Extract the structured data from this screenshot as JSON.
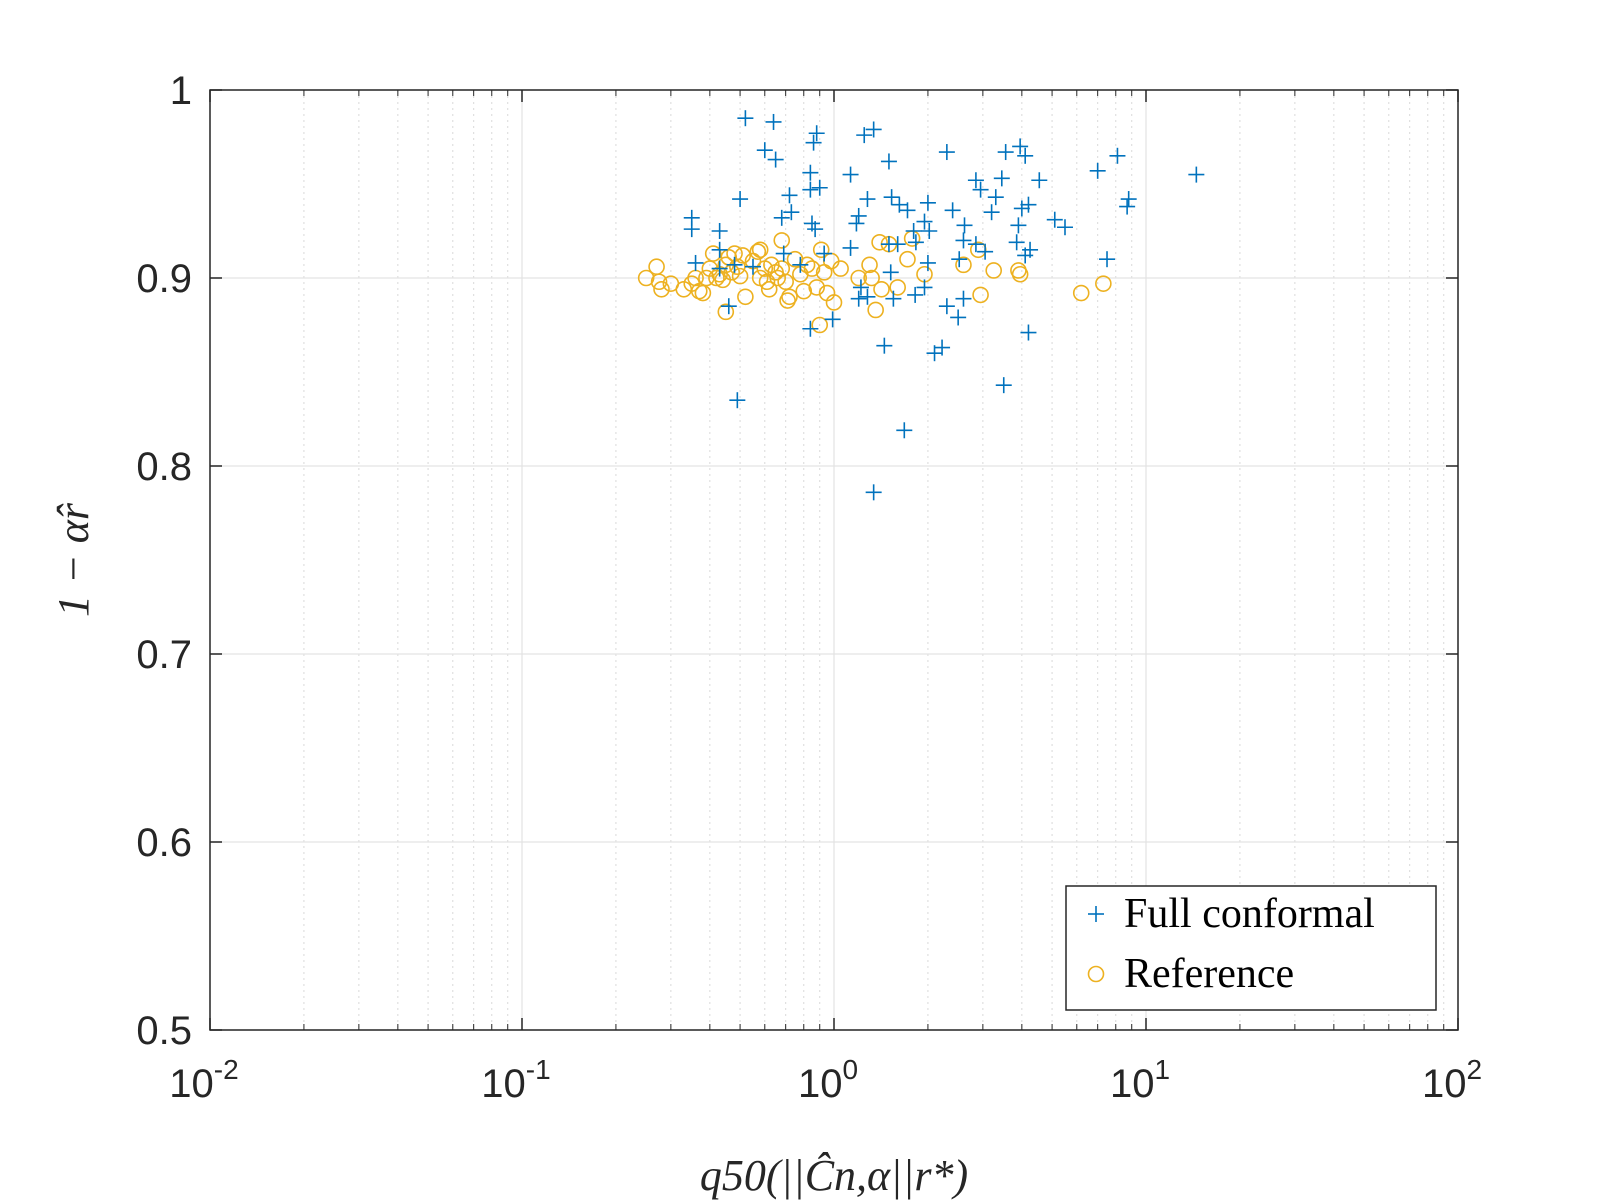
{
  "chart_data": {
    "type": "scatter",
    "title": "",
    "xlabel": "q50(||Ĉn,α||r*)",
    "ylabel": "1 − α̂r",
    "xscale": "log",
    "xlim": [
      0.01,
      100
    ],
    "ylim": [
      0.5,
      1
    ],
    "grid": true,
    "legend_position": "bottom-right",
    "x_ticks": [
      {
        "value": 0.01,
        "base": "10",
        "exp": "-2"
      },
      {
        "value": 0.1,
        "base": "10",
        "exp": "-1"
      },
      {
        "value": 1,
        "base": "10",
        "exp": "0"
      },
      {
        "value": 10,
        "base": "10",
        "exp": "1"
      },
      {
        "value": 100,
        "base": "10",
        "exp": "2"
      }
    ],
    "y_ticks": [
      {
        "value": 0.5,
        "label": "0.5"
      },
      {
        "value": 0.6,
        "label": "0.6"
      },
      {
        "value": 0.7,
        "label": "0.7"
      },
      {
        "value": 0.8,
        "label": "0.8"
      },
      {
        "value": 0.9,
        "label": "0.9"
      },
      {
        "value": 1,
        "label": "1"
      }
    ],
    "series": [
      {
        "name": "Full conformal",
        "marker": "plus",
        "color": "#0072BD",
        "points": [
          [
            0.52,
            0.985
          ],
          [
            0.64,
            0.983
          ],
          [
            0.88,
            0.977
          ],
          [
            0.86,
            0.972
          ],
          [
            1.34,
            0.979
          ],
          [
            1.25,
            0.976
          ],
          [
            0.6,
            0.968
          ],
          [
            0.65,
            0.963
          ],
          [
            1.5,
            0.962
          ],
          [
            2.3,
            0.967
          ],
          [
            3.55,
            0.967
          ],
          [
            3.95,
            0.97
          ],
          [
            4.1,
            0.965
          ],
          [
            8.1,
            0.965
          ],
          [
            7.0,
            0.957
          ],
          [
            14.5,
            0.955
          ],
          [
            0.84,
            0.956
          ],
          [
            1.13,
            0.955
          ],
          [
            2.85,
            0.952
          ],
          [
            2.95,
            0.947
          ],
          [
            3.45,
            0.953
          ],
          [
            4.55,
            0.952
          ],
          [
            0.72,
            0.944
          ],
          [
            0.84,
            0.947
          ],
          [
            0.9,
            0.948
          ],
          [
            0.5,
            0.942
          ],
          [
            1.28,
            0.942
          ],
          [
            1.53,
            0.943
          ],
          [
            2.0,
            0.94
          ],
          [
            3.3,
            0.943
          ],
          [
            4.2,
            0.939
          ],
          [
            8.8,
            0.942
          ],
          [
            8.7,
            0.938
          ],
          [
            1.2,
            0.933
          ],
          [
            1.62,
            0.939
          ],
          [
            1.72,
            0.936
          ],
          [
            2.4,
            0.936
          ],
          [
            3.2,
            0.935
          ],
          [
            4.0,
            0.937
          ],
          [
            0.73,
            0.935
          ],
          [
            0.68,
            0.932
          ],
          [
            0.35,
            0.932
          ],
          [
            0.35,
            0.926
          ],
          [
            0.43,
            0.925
          ],
          [
            0.85,
            0.929
          ],
          [
            0.87,
            0.926
          ],
          [
            1.18,
            0.929
          ],
          [
            1.8,
            0.925
          ],
          [
            1.95,
            0.93
          ],
          [
            2.02,
            0.925
          ],
          [
            2.62,
            0.928
          ],
          [
            3.9,
            0.928
          ],
          [
            5.1,
            0.931
          ],
          [
            5.5,
            0.927
          ],
          [
            1.5,
            0.918
          ],
          [
            1.6,
            0.918
          ],
          [
            1.83,
            0.919
          ],
          [
            1.13,
            0.916
          ],
          [
            2.6,
            0.92
          ],
          [
            2.85,
            0.918
          ],
          [
            3.85,
            0.919
          ],
          [
            4.25,
            0.915
          ],
          [
            0.43,
            0.915
          ],
          [
            0.69,
            0.913
          ],
          [
            0.93,
            0.913
          ],
          [
            0.36,
            0.908
          ],
          [
            0.43,
            0.905
          ],
          [
            0.48,
            0.907
          ],
          [
            0.55,
            0.906
          ],
          [
            0.78,
            0.907
          ],
          [
            2.0,
            0.908
          ],
          [
            2.52,
            0.91
          ],
          [
            3.05,
            0.914
          ],
          [
            4.1,
            0.912
          ],
          [
            7.5,
            0.91
          ],
          [
            1.52,
            0.903
          ],
          [
            1.22,
            0.895
          ],
          [
            1.95,
            0.895
          ],
          [
            1.2,
            0.889
          ],
          [
            1.28,
            0.89
          ],
          [
            1.55,
            0.889
          ],
          [
            1.82,
            0.891
          ],
          [
            2.3,
            0.885
          ],
          [
            2.6,
            0.889
          ],
          [
            0.46,
            0.885
          ],
          [
            0.99,
            0.878
          ],
          [
            2.5,
            0.879
          ],
          [
            0.84,
            0.873
          ],
          [
            4.2,
            0.871
          ],
          [
            1.45,
            0.864
          ],
          [
            2.1,
            0.86
          ],
          [
            2.22,
            0.863
          ],
          [
            0.49,
            0.835
          ],
          [
            3.5,
            0.843
          ],
          [
            1.68,
            0.819
          ],
          [
            1.34,
            0.786
          ]
        ]
      },
      {
        "name": "Reference",
        "marker": "circle",
        "color": "#EDB120",
        "points": [
          [
            0.25,
            0.9
          ],
          [
            0.27,
            0.906
          ],
          [
            0.275,
            0.898
          ],
          [
            0.28,
            0.894
          ],
          [
            0.3,
            0.897
          ],
          [
            0.33,
            0.894
          ],
          [
            0.35,
            0.897
          ],
          [
            0.36,
            0.9
          ],
          [
            0.37,
            0.893
          ],
          [
            0.38,
            0.892
          ],
          [
            0.39,
            0.9
          ],
          [
            0.4,
            0.905
          ],
          [
            0.41,
            0.913
          ],
          [
            0.42,
            0.9
          ],
          [
            0.43,
            0.902
          ],
          [
            0.44,
            0.899
          ],
          [
            0.45,
            0.907
          ],
          [
            0.46,
            0.911
          ],
          [
            0.47,
            0.903
          ],
          [
            0.48,
            0.913
          ],
          [
            0.49,
            0.906
          ],
          [
            0.5,
            0.901
          ],
          [
            0.52,
            0.89
          ],
          [
            0.55,
            0.909
          ],
          [
            0.57,
            0.914
          ],
          [
            0.58,
            0.9
          ],
          [
            0.6,
            0.905
          ],
          [
            0.61,
            0.898
          ],
          [
            0.62,
            0.894
          ],
          [
            0.63,
            0.907
          ],
          [
            0.65,
            0.903
          ],
          [
            0.66,
            0.9
          ],
          [
            0.68,
            0.905
          ],
          [
            0.7,
            0.898
          ],
          [
            0.71,
            0.888
          ],
          [
            0.72,
            0.89
          ],
          [
            0.75,
            0.91
          ],
          [
            0.78,
            0.902
          ],
          [
            0.8,
            0.893
          ],
          [
            0.82,
            0.907
          ],
          [
            0.85,
            0.905
          ],
          [
            0.88,
            0.895
          ],
          [
            0.9,
            0.875
          ],
          [
            0.91,
            0.915
          ],
          [
            0.93,
            0.903
          ],
          [
            0.95,
            0.892
          ],
          [
            0.98,
            0.909
          ],
          [
            1.0,
            0.887
          ],
          [
            1.05,
            0.905
          ],
          [
            1.2,
            0.9
          ],
          [
            1.3,
            0.907
          ],
          [
            1.32,
            0.9
          ],
          [
            1.36,
            0.883
          ],
          [
            1.4,
            0.919
          ],
          [
            1.42,
            0.894
          ],
          [
            1.5,
            0.918
          ],
          [
            1.6,
            0.895
          ],
          [
            1.72,
            0.91
          ],
          [
            1.78,
            0.921
          ],
          [
            1.95,
            0.902
          ],
          [
            2.6,
            0.907
          ],
          [
            2.9,
            0.915
          ],
          [
            2.95,
            0.891
          ],
          [
            3.25,
            0.904
          ],
          [
            3.9,
            0.904
          ],
          [
            3.95,
            0.902
          ],
          [
            6.2,
            0.892
          ],
          [
            7.3,
            0.897
          ],
          [
            0.45,
            0.882
          ],
          [
            0.68,
            0.92
          ],
          [
            0.58,
            0.915
          ],
          [
            0.51,
            0.912
          ]
        ]
      }
    ]
  }
}
